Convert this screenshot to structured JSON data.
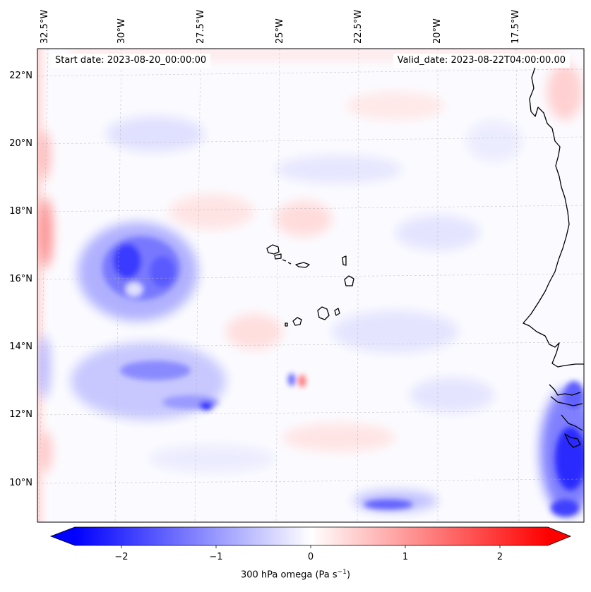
{
  "map": {
    "start_date_text": "Start date: 2023-08-20_00:00:00",
    "valid_date_text": "Valid_date: 2023-08-22T04:00:00.00",
    "lon_labels": [
      "32.5°W",
      "30°W",
      "27.5°W",
      "25°W",
      "22.5°W",
      "20°W",
      "17.5°W"
    ],
    "lat_labels": [
      "22°N",
      "20°N",
      "18°N",
      "16°N",
      "14°N",
      "12°N",
      "10°N"
    ],
    "colorbar": {
      "ticks": [
        "−2",
        "−1",
        "0",
        "1",
        "2"
      ],
      "label_prefix": "300 hPa omega (Pa s",
      "label_exponent": "−1",
      "label_suffix": ")",
      "min": -2.6,
      "max": 2.6,
      "colormap": "bwr",
      "colors": {
        "negative": "#0000ff",
        "neutral": "#ffffff",
        "positive": "#ff0000"
      }
    },
    "colors": {
      "coastline": "#000000",
      "gridline": "#b0b0b0"
    }
  }
}
